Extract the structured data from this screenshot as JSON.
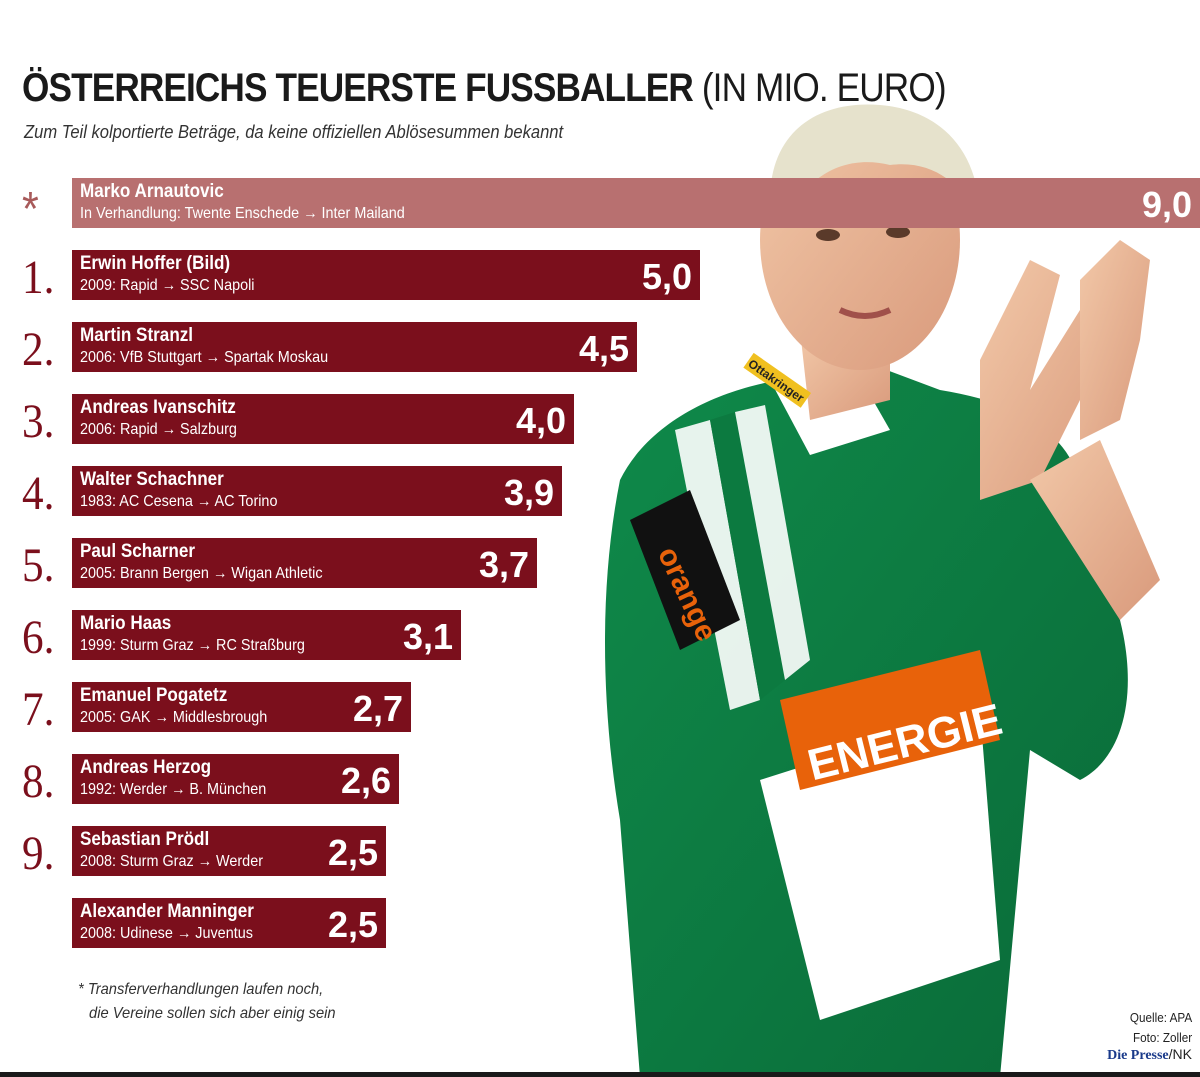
{
  "title": "ÖSTERREICHS TEUERSTE FUSSBALLER",
  "title_unit": "(IN MIO. EURO)",
  "subtitle": "Zum Teil kolportierte Beträge, da keine offiziellen Ablösesummen bekannt",
  "chart_data": {
    "type": "bar",
    "orientation": "horizontal",
    "title": "ÖSTERREICHS TEUERSTE FUSSBALLER (IN MIO. EURO)",
    "subtitle": "Zum Teil kolportierte Beträge, da keine offiziellen Ablösesummen bekannt",
    "unit": "Mio. Euro",
    "rows": [
      {
        "rank": "*",
        "name": "Marko Arnautovic",
        "detail": "In Verhandlung: Twente Enschede → Inter Mailand",
        "value": 9.0,
        "label": "9,0",
        "highlight": true
      },
      {
        "rank": "1.",
        "name": "Erwin Hoffer (Bild)",
        "detail": "2009: Rapid → SSC Napoli",
        "value": 5.0,
        "label": "5,0"
      },
      {
        "rank": "2.",
        "name": "Martin Stranzl",
        "detail": "2006: VfB Stuttgart → Spartak Moskau",
        "value": 4.5,
        "label": "4,5"
      },
      {
        "rank": "3.",
        "name": "Andreas Ivanschitz",
        "detail": "2006: Rapid → Salzburg",
        "value": 4.0,
        "label": "4,0"
      },
      {
        "rank": "4.",
        "name": "Walter Schachner",
        "detail": "1983: AC Cesena → AC Torino",
        "value": 3.9,
        "label": "3,9"
      },
      {
        "rank": "5.",
        "name": "Paul Scharner",
        "detail": "2005: Brann Bergen → Wigan Athletic",
        "value": 3.7,
        "label": "3,7"
      },
      {
        "rank": "6.",
        "name": "Mario Haas",
        "detail": "1999: Sturm Graz → RC Straßburg",
        "value": 3.1,
        "label": "3,1"
      },
      {
        "rank": "7.",
        "name": "Emanuel Pogatetz",
        "detail": "2005: GAK → Middlesbrough",
        "value": 2.7,
        "label": "2,7"
      },
      {
        "rank": "8.",
        "name": "Andreas Herzog",
        "detail": "1992: Werder → B. München",
        "value": 2.6,
        "label": "2,6"
      },
      {
        "rank": "9.",
        "name": "Sebastian Prödl",
        "detail": "2008: Sturm Graz → Werder",
        "value": 2.5,
        "label": "2,5"
      },
      {
        "rank": "",
        "name": "Alexander Manninger",
        "detail": "2008: Udinese → Juventus",
        "value": 2.5,
        "label": "2,5"
      }
    ],
    "colors": {
      "bar": "#7b0f1c",
      "highlight_bar": "#b87070",
      "rank": "#7b0f1c"
    }
  },
  "footnote": {
    "line1": "* Transferverhandlungen laufen noch,",
    "line2": "die Vereine sollen sich aber einig sein"
  },
  "source": {
    "quelle": "Quelle: APA",
    "foto": "Foto: Zoller",
    "brand": "Die Presse",
    "author": "/NK"
  },
  "photo": {
    "jersey_text": "orange",
    "sponsor_text": "ENERGIE",
    "badge_text": "Ottakringer"
  }
}
